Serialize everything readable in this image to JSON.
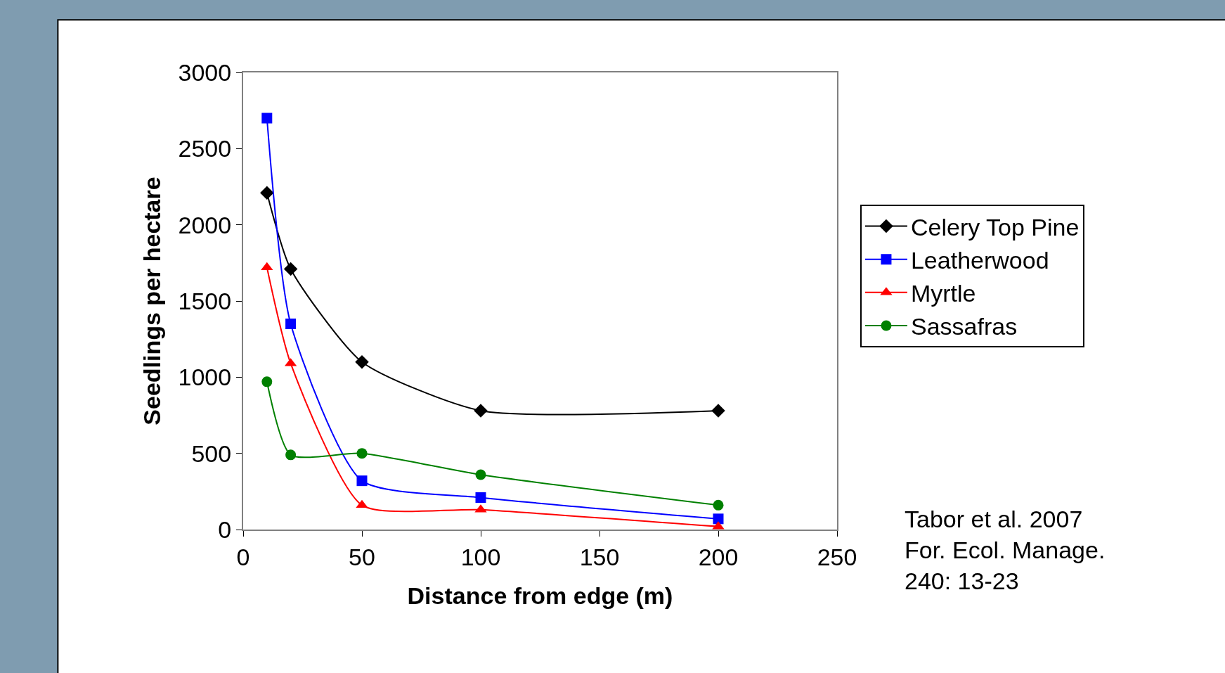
{
  "chart_data": {
    "type": "line",
    "xlabel": "Distance from edge (m)",
    "ylabel": "Seedlings per hectare",
    "x": [
      10,
      20,
      50,
      100,
      200
    ],
    "series": [
      {
        "name": "Celery Top Pine",
        "color": "#000000",
        "marker": "diamond",
        "values": [
          2210,
          1710,
          1100,
          780,
          780
        ]
      },
      {
        "name": "Leatherwood",
        "color": "#0000ff",
        "marker": "square",
        "values": [
          2700,
          1350,
          320,
          210,
          70
        ]
      },
      {
        "name": "Myrtle",
        "color": "#ff0000",
        "marker": "triangle",
        "values": [
          1720,
          1090,
          160,
          130,
          20
        ]
      },
      {
        "name": "Sassafras",
        "color": "#008000",
        "marker": "circle",
        "values": [
          970,
          490,
          500,
          360,
          160
        ]
      }
    ],
    "xlim": [
      0,
      250
    ],
    "xticks": [
      0,
      50,
      100,
      150,
      200,
      250
    ],
    "ylim": [
      0,
      3000
    ],
    "yticks": [
      0,
      500,
      1000,
      1500,
      2000,
      2500,
      3000
    ],
    "grid": false,
    "legend": "right",
    "annotations": [
      "Tabor et al. 2007\nFor. Ecol. Manage.\n240: 13-23"
    ]
  }
}
